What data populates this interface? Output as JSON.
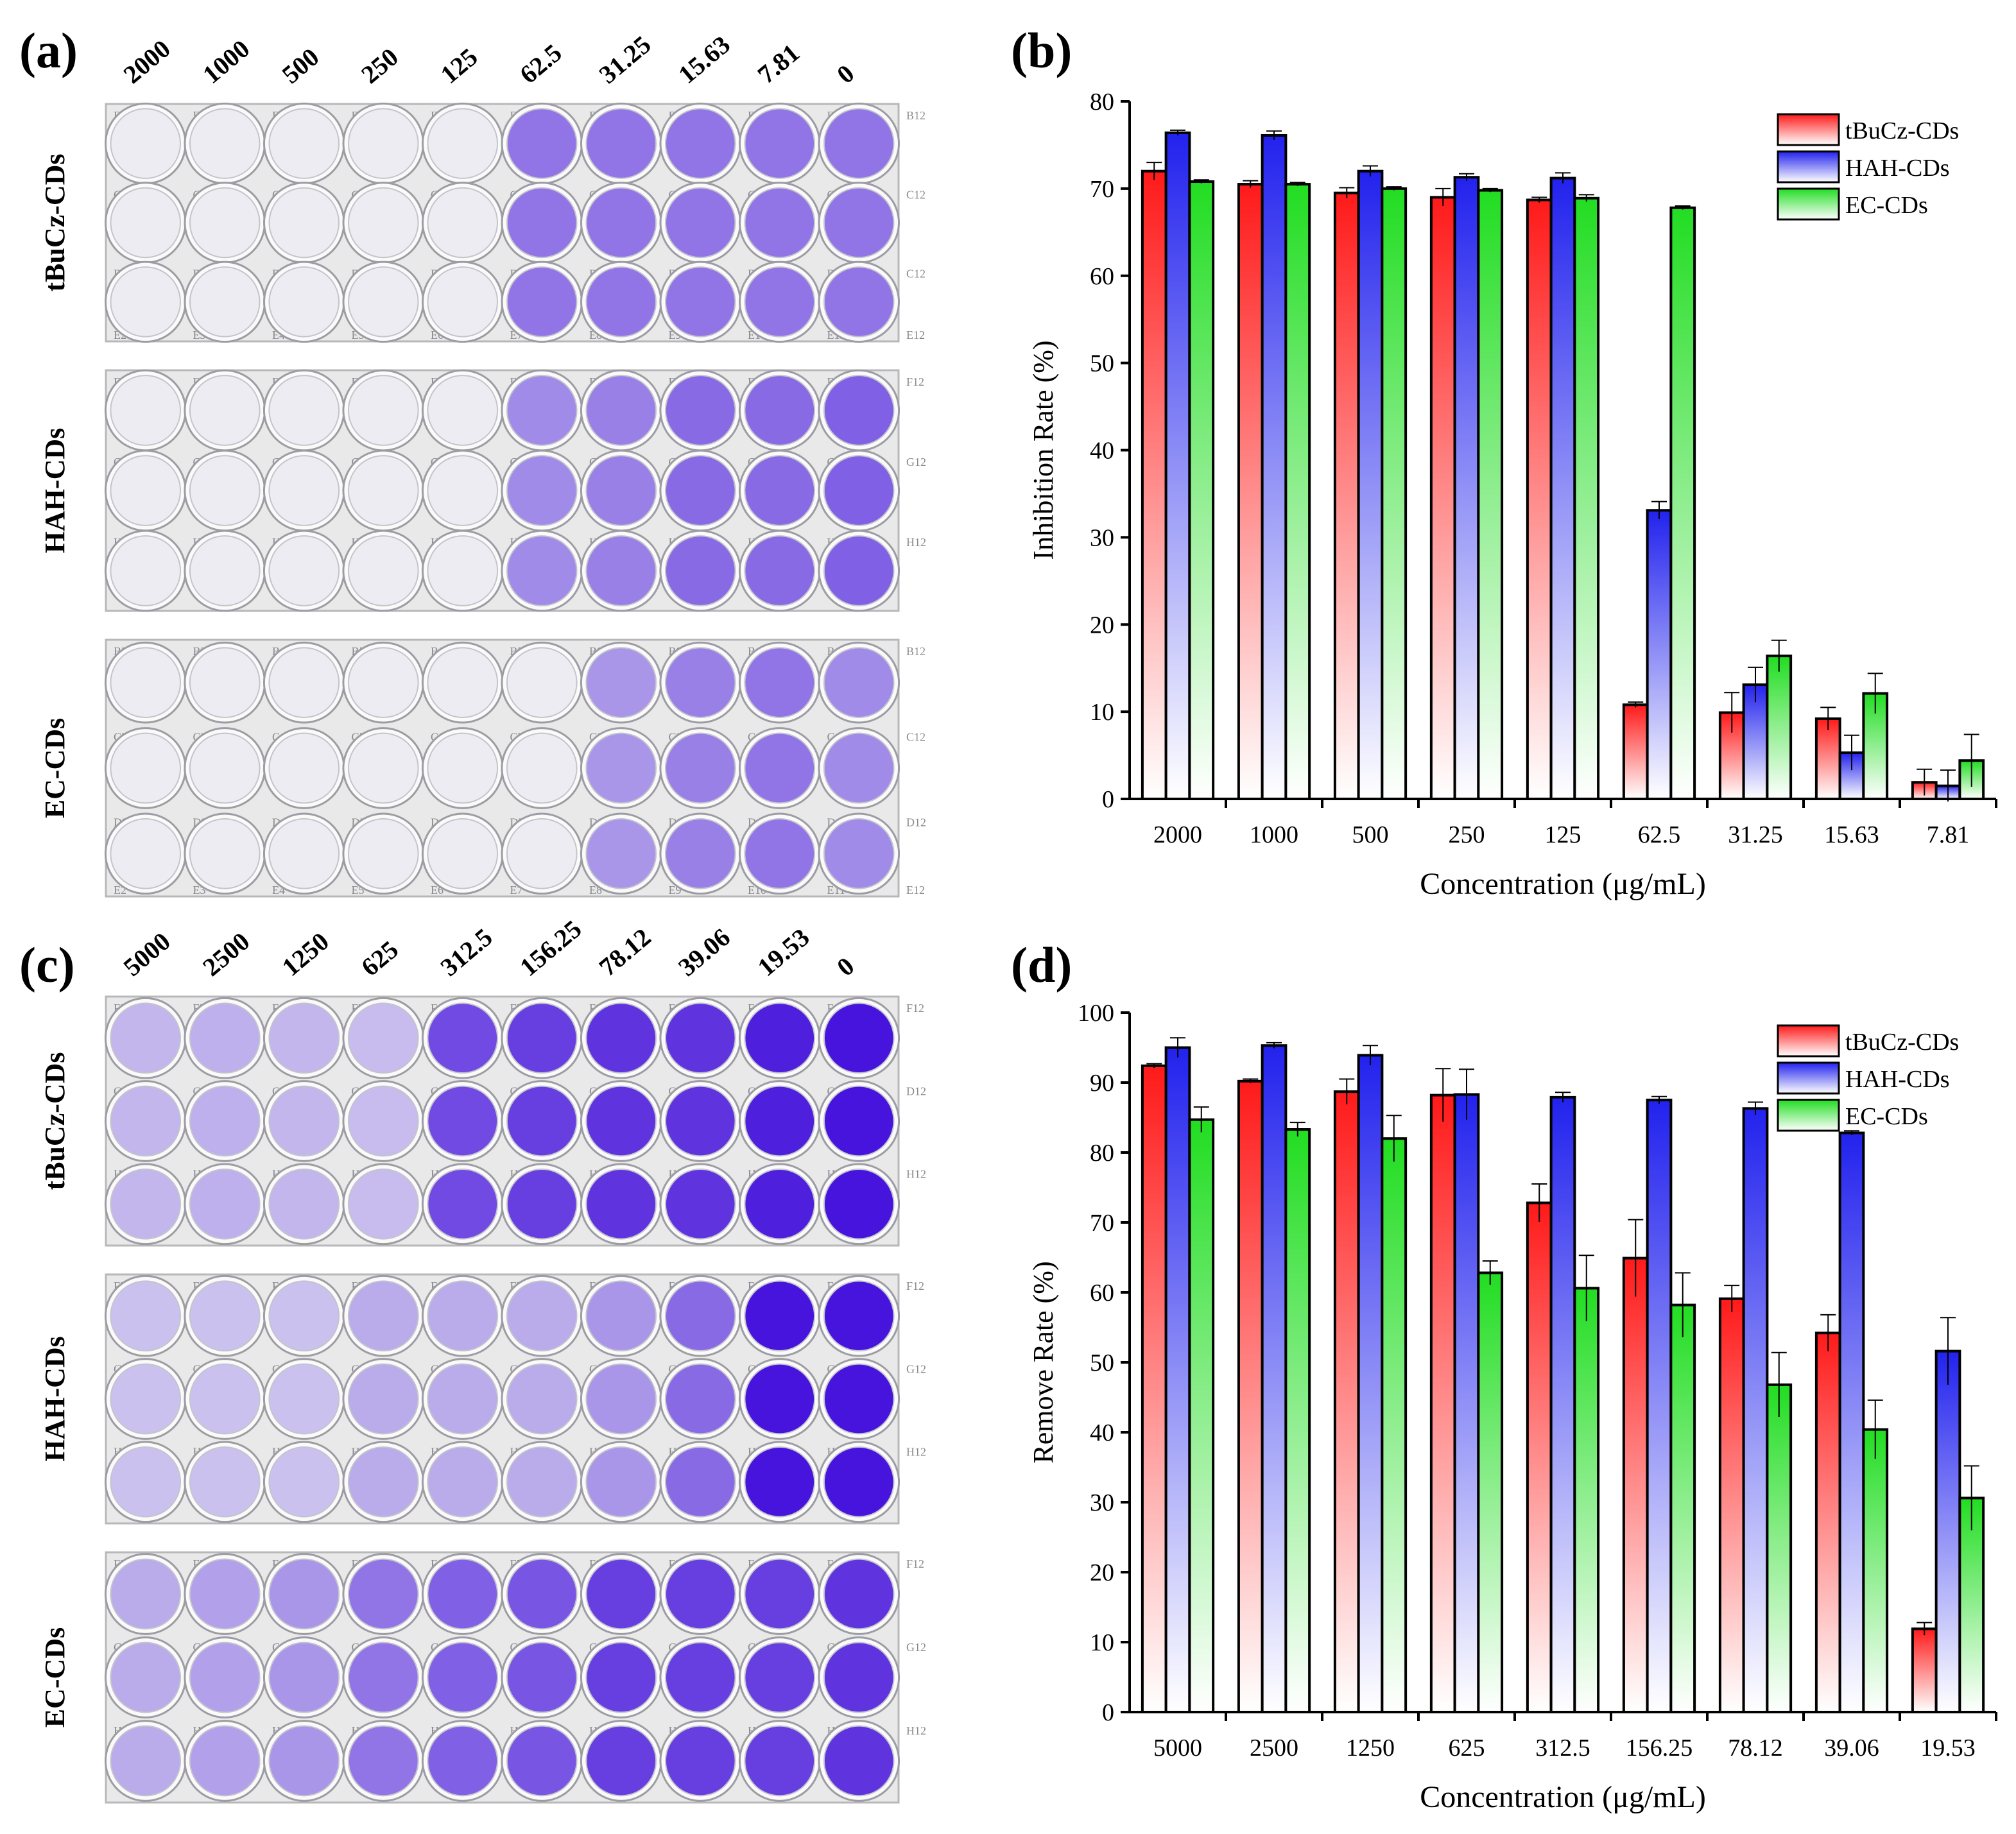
{
  "panels": {
    "a": {
      "label": "(a)",
      "concentrations": [
        "2000",
        "1000",
        "500",
        "250",
        "125",
        "62.5",
        "31.25",
        "15.63",
        "7.81",
        "0"
      ],
      "plates": [
        {
          "name": "tBuCz-CDs",
          "wells": [
            0,
            0,
            0,
            0,
            0,
            0.55,
            0.55,
            0.55,
            0.55,
            0.55
          ],
          "well_labels": [
            [
              "B2",
              "B3",
              "B4",
              "B5",
              "B6",
              "B7",
              "B8",
              "B9",
              "B10",
              "B11",
              "B12"
            ],
            [
              "C2",
              "C3",
              "C4",
              "C5",
              "C6",
              "C7",
              "C8",
              "C9",
              "C10",
              "C11",
              "C12"
            ],
            [
              "D2",
              "D3",
              "D4",
              "D5",
              "D6",
              "D7",
              "D8",
              "D9",
              "D10",
              "D11",
              "C12"
            ],
            [
              "E2",
              "E3",
              "E4",
              "E5",
              "E6",
              "E7",
              "E8",
              "E9",
              "E10",
              "E11",
              "E12"
            ]
          ]
        },
        {
          "name": "HAH-CDs",
          "wells": [
            0,
            0,
            0,
            0,
            0,
            0.45,
            0.5,
            0.6,
            0.6,
            0.65
          ],
          "well_labels": [
            [
              "F2",
              "F3",
              "F4",
              "F5",
              "F6",
              "F7",
              "F8",
              "F9",
              "F10",
              "F11",
              "F12"
            ],
            [
              "G2",
              "G3",
              "G4",
              "G5",
              "G6",
              "G7",
              "G8",
              "G9",
              "G10",
              "G11",
              "G12"
            ],
            [
              "H2",
              "H3",
              "H4",
              "H5",
              "H6",
              "H7",
              "H8",
              "H9",
              "H10",
              "H11",
              "H12"
            ]
          ]
        },
        {
          "name": "EC-CDs",
          "wells": [
            0,
            0,
            0,
            0,
            0,
            0,
            0.4,
            0.5,
            0.55,
            0.45
          ],
          "well_labels": [
            [
              "B2",
              "B3",
              "B4",
              "B5",
              "B6",
              "B7",
              "B8",
              "B9",
              "B10",
              "B11",
              "B12"
            ],
            [
              "C2",
              "C3",
              "C4",
              "C5",
              "C6",
              "C7",
              "C8",
              "C9",
              "C10",
              "C11",
              "C12"
            ],
            [
              "D2",
              "D3",
              "D4",
              "D5",
              "D6",
              "D7",
              "D8",
              "D9",
              "D10",
              "D11",
              "D12"
            ],
            [
              "E2",
              "E3",
              "E4",
              "E5",
              "E6",
              "E7",
              "E8",
              "E9",
              "E10",
              "E11",
              "E12"
            ]
          ]
        }
      ]
    },
    "c": {
      "label": "(c)",
      "concentrations": [
        "5000",
        "2500",
        "1250",
        "625",
        "312.5",
        "156.25",
        "78.12",
        "39.06",
        "19.53",
        "0"
      ],
      "plates": [
        {
          "name": "tBuCz-CDs",
          "wells": [
            0.25,
            0.28,
            0.25,
            0.22,
            0.75,
            0.8,
            0.85,
            0.85,
            0.95,
            1.0
          ],
          "well_labels": [
            [
              "F2",
              "F3",
              "F4",
              "F5",
              "F6",
              "F7",
              "F8",
              "F9",
              "F10",
              "F11",
              "F12"
            ],
            [
              "G2",
              "G3",
              "G4",
              "G5",
              "G6",
              "G7",
              "G8",
              "G9",
              "C10",
              "C11",
              "D12"
            ],
            [
              "H2",
              "H3",
              "H4",
              "H5",
              "H6",
              "H7",
              "H8",
              "H9",
              "H10",
              "H11",
              "H12"
            ]
          ]
        },
        {
          "name": "HAH-CDs",
          "wells": [
            0.2,
            0.2,
            0.2,
            0.3,
            0.3,
            0.3,
            0.4,
            0.6,
            1.0,
            1.0
          ],
          "well_labels": [
            [
              "F2",
              "F3",
              "F4",
              "F5",
              "F6",
              "F7",
              "F8",
              "F9",
              "F10",
              "F11",
              "F12"
            ],
            [
              "G2",
              "G3",
              "G4",
              "G5",
              "G6",
              "G7",
              "G8",
              "G9",
              "G10",
              "G11",
              "G12"
            ],
            [
              "H2",
              "H3",
              "H4",
              "H5",
              "H6",
              "H7",
              "H8",
              "H9",
              "H10",
              "H11",
              "H12"
            ]
          ]
        },
        {
          "name": "EC-CDs",
          "wells": [
            0.3,
            0.35,
            0.4,
            0.55,
            0.65,
            0.7,
            0.8,
            0.8,
            0.8,
            0.85
          ],
          "well_labels": [
            [
              "F2",
              "F3",
              "F4",
              "F5",
              "F6",
              "F7",
              "F8",
              "F9",
              "F10",
              "F11",
              "F12"
            ],
            [
              "G2",
              "G3",
              "G4",
              "G5",
              "G6",
              "G7",
              "G8",
              "G9",
              "G10",
              "G11",
              "G12"
            ],
            [
              "H2",
              "H3",
              "H4",
              "H5",
              "H6",
              "H7",
              "H8",
              "H9",
              "H10",
              "H11",
              "H12"
            ]
          ]
        }
      ]
    }
  },
  "chart_data": [
    {
      "panel": "(b)",
      "type": "bar",
      "title": "",
      "xlabel": "Concentration (μg/mL)",
      "ylabel": "Inhibition Rate (%)",
      "ylim": [
        0,
        80
      ],
      "yticks": [
        0,
        10,
        20,
        30,
        40,
        50,
        60,
        70,
        80
      ],
      "categories": [
        "2000",
        "1000",
        "500",
        "250",
        "125",
        "62.5",
        "31.25",
        "15.63",
        "7.81"
      ],
      "legend_position": "top-right",
      "series": [
        {
          "name": "tBuCz-CDs",
          "color": "#ff1a1a",
          "values": [
            72,
            70.5,
            69.5,
            69,
            68.7,
            10.8,
            9.9,
            9.2,
            1.9
          ],
          "errors": [
            1.0,
            0.4,
            0.6,
            1.0,
            0.3,
            0.3,
            2.3,
            1.3,
            1.5
          ]
        },
        {
          "name": "HAH-CDs",
          "color": "#2222ee",
          "values": [
            76.4,
            76.1,
            72,
            71.3,
            71.2,
            33.1,
            13.1,
            5.3,
            1.5
          ],
          "errors": [
            0.3,
            0.5,
            0.6,
            0.4,
            0.6,
            1.0,
            2.0,
            2.0,
            1.8
          ]
        },
        {
          "name": "EC-CDs",
          "color": "#22dd22",
          "values": [
            70.8,
            70.5,
            70,
            69.8,
            68.9,
            67.8,
            16.4,
            12.1,
            4.4
          ],
          "errors": [
            0.2,
            0.2,
            0.2,
            0.2,
            0.4,
            0.2,
            1.8,
            2.3,
            3.0
          ]
        }
      ]
    },
    {
      "panel": "(d)",
      "type": "bar",
      "title": "",
      "xlabel": "Concentration (μg/mL)",
      "ylabel": "Remove Rate (%)",
      "ylim": [
        0,
        100
      ],
      "yticks": [
        0,
        10,
        20,
        30,
        40,
        50,
        60,
        70,
        80,
        90,
        100
      ],
      "categories": [
        "5000",
        "2500",
        "1250",
        "625",
        "312.5",
        "156.25",
        "78.12",
        "39.06",
        "19.53"
      ],
      "legend_position": "top-right",
      "series": [
        {
          "name": "tBuCz-CDs",
          "color": "#ff1a1a",
          "values": [
            92.4,
            90.2,
            88.7,
            88.2,
            72.8,
            64.9,
            59.1,
            54.2,
            11.9
          ],
          "errors": [
            0.3,
            0.3,
            1.8,
            3.8,
            2.7,
            5.5,
            1.9,
            2.6,
            0.9
          ]
        },
        {
          "name": "HAH-CDs",
          "color": "#2222ee",
          "values": [
            95,
            95.3,
            93.9,
            88.3,
            87.9,
            87.5,
            86.3,
            82.8,
            51.6
          ],
          "errors": [
            1.4,
            0.4,
            1.4,
            3.6,
            0.7,
            0.5,
            0.9,
            0.3,
            4.8
          ]
        },
        {
          "name": "EC-CDs",
          "color": "#22dd22",
          "values": [
            84.7,
            83.3,
            82,
            62.8,
            60.6,
            58.2,
            46.8,
            40.4,
            30.6
          ],
          "errors": [
            1.8,
            1.0,
            3.3,
            1.7,
            4.7,
            4.6,
            4.6,
            4.2,
            4.6
          ]
        }
      ]
    }
  ]
}
